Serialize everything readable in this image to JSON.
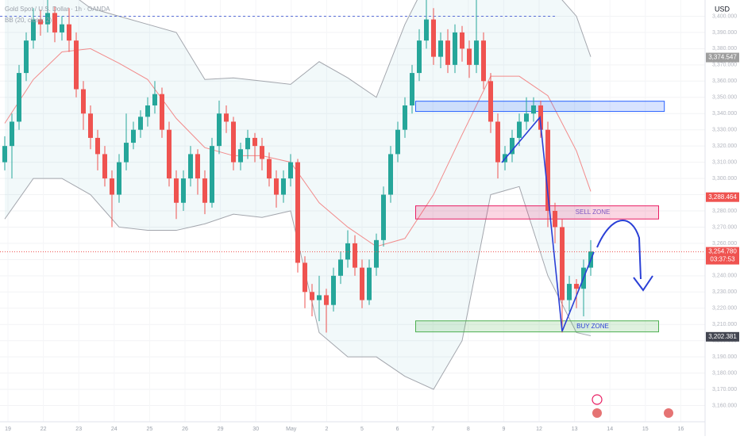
{
  "chart_data": {
    "type": "candlestick",
    "title": "Gold Spot / U.S. Dollar · 1h · OANDA",
    "indicator": "BB (20, close, 2)",
    "currency": "USD",
    "up_color": "#26a69a",
    "down_color": "#ef5350",
    "ylim": [
      3150,
      3410
    ],
    "yticks": [
      {
        "value": 3160,
        "label": "3,160.000"
      },
      {
        "value": 3170,
        "label": "3,170.000"
      },
      {
        "value": 3180,
        "label": "3,180.000"
      },
      {
        "value": 3190,
        "label": "3,190.000"
      },
      {
        "value": 3200,
        "label": "3,200.000"
      },
      {
        "value": 3210,
        "label": "3,210.000"
      },
      {
        "value": 3220,
        "label": "3,220.000"
      },
      {
        "value": 3230,
        "label": "3,230.000"
      },
      {
        "value": 3240,
        "label": "3,240.000"
      },
      {
        "value": 3250,
        "label": "3,250.000"
      },
      {
        "value": 3260,
        "label": "3,260.000"
      },
      {
        "value": 3270,
        "label": "3,270.000"
      },
      {
        "value": 3280,
        "label": "3,280.000"
      },
      {
        "value": 3290,
        "label": "3,290.000"
      },
      {
        "value": 3300,
        "label": "3,300.000"
      },
      {
        "value": 3310,
        "label": "3,310.000"
      },
      {
        "value": 3320,
        "label": "3,320.000"
      },
      {
        "value": 3330,
        "label": "3,330.000"
      },
      {
        "value": 3340,
        "label": "3,340.000"
      },
      {
        "value": 3350,
        "label": "3,350.000"
      },
      {
        "value": 3360,
        "label": "3,360.000"
      },
      {
        "value": 3370,
        "label": "3,370.000"
      },
      {
        "value": 3380,
        "label": "3,380.000"
      },
      {
        "value": 3390,
        "label": "3,390.000"
      },
      {
        "value": 3400,
        "label": "3,400.000"
      }
    ],
    "x_labels": [
      "19",
      "22",
      "23",
      "24",
      "25",
      "26",
      "29",
      "30",
      "May",
      "2",
      "5",
      "6",
      "7",
      "8",
      "9",
      "12",
      "13",
      "14",
      "15",
      "16"
    ],
    "candles": [
      [
        3310,
        3326,
        3305,
        3320
      ],
      [
        3320,
        3340,
        3300,
        3335
      ],
      [
        3335,
        3370,
        3330,
        3365
      ],
      [
        3365,
        3390,
        3360,
        3385
      ],
      [
        3385,
        3405,
        3380,
        3398
      ],
      [
        3398,
        3404,
        3388,
        3395
      ],
      [
        3395,
        3410,
        3390,
        3402
      ],
      [
        3402,
        3406,
        3384,
        3390
      ],
      [
        3390,
        3400,
        3385,
        3395
      ],
      [
        3395,
        3405,
        3378,
        3385
      ],
      [
        3385,
        3390,
        3350,
        3355
      ],
      [
        3355,
        3360,
        3330,
        3340
      ],
      [
        3340,
        3345,
        3318,
        3325
      ],
      [
        3325,
        3330,
        3305,
        3315
      ],
      [
        3315,
        3320,
        3295,
        3300
      ],
      [
        3300,
        3305,
        3270,
        3290
      ],
      [
        3290,
        3315,
        3285,
        3310
      ],
      [
        3310,
        3340,
        3305,
        3322
      ],
      [
        3322,
        3335,
        3318,
        3330
      ],
      [
        3330,
        3342,
        3325,
        3338
      ],
      [
        3338,
        3350,
        3332,
        3345
      ],
      [
        3345,
        3360,
        3340,
        3352
      ],
      [
        3352,
        3356,
        3325,
        3330
      ],
      [
        3330,
        3335,
        3295,
        3300
      ],
      [
        3300,
        3305,
        3275,
        3285
      ],
      [
        3285,
        3305,
        3280,
        3300
      ],
      [
        3300,
        3320,
        3295,
        3315
      ],
      [
        3315,
        3318,
        3290,
        3300
      ],
      [
        3300,
        3305,
        3278,
        3285
      ],
      [
        3285,
        3325,
        3282,
        3320
      ],
      [
        3320,
        3348,
        3315,
        3340
      ],
      [
        3340,
        3345,
        3328,
        3335
      ],
      [
        3335,
        3338,
        3305,
        3310
      ],
      [
        3310,
        3322,
        3305,
        3318
      ],
      [
        3318,
        3330,
        3312,
        3325
      ],
      [
        3325,
        3328,
        3310,
        3320
      ],
      [
        3320,
        3325,
        3305,
        3312
      ],
      [
        3312,
        3316,
        3295,
        3300
      ],
      [
        3300,
        3305,
        3282,
        3290
      ],
      [
        3290,
        3305,
        3285,
        3300
      ],
      [
        3300,
        3315,
        3295,
        3310
      ],
      [
        3310,
        3312,
        3242,
        3248
      ],
      [
        3248,
        3252,
        3220,
        3230
      ],
      [
        3230,
        3235,
        3215,
        3225
      ],
      [
        3225,
        3240,
        3212,
        3228
      ],
      [
        3228,
        3232,
        3205,
        3222
      ],
      [
        3222,
        3245,
        3218,
        3240
      ],
      [
        3240,
        3255,
        3235,
        3250
      ],
      [
        3250,
        3268,
        3245,
        3260
      ],
      [
        3260,
        3265,
        3240,
        3245
      ],
      [
        3245,
        3250,
        3220,
        3225
      ],
      [
        3225,
        3250,
        3222,
        3245
      ],
      [
        3245,
        3266,
        3240,
        3262
      ],
      [
        3262,
        3295,
        3258,
        3290
      ],
      [
        3290,
        3320,
        3285,
        3315
      ],
      [
        3315,
        3335,
        3310,
        3330
      ],
      [
        3330,
        3350,
        3325,
        3345
      ],
      [
        3345,
        3370,
        3340,
        3365
      ],
      [
        3365,
        3392,
        3360,
        3385
      ],
      [
        3385,
        3410,
        3380,
        3398
      ],
      [
        3398,
        3405,
        3370,
        3375
      ],
      [
        3375,
        3390,
        3368,
        3385
      ],
      [
        3385,
        3392,
        3365,
        3370
      ],
      [
        3370,
        3395,
        3365,
        3390
      ],
      [
        3390,
        3394,
        3372,
        3380
      ],
      [
        3380,
        3385,
        3362,
        3370
      ],
      [
        3370,
        3410,
        3365,
        3385
      ],
      [
        3385,
        3390,
        3355,
        3360
      ],
      [
        3360,
        3365,
        3328,
        3335
      ],
      [
        3335,
        3340,
        3300,
        3310
      ],
      [
        3310,
        3320,
        3305,
        3315
      ],
      [
        3315,
        3330,
        3310,
        3325
      ],
      [
        3325,
        3340,
        3320,
        3335
      ],
      [
        3335,
        3350,
        3330,
        3340
      ],
      [
        3340,
        3350,
        3335,
        3345
      ],
      [
        3345,
        3348,
        3325,
        3330
      ],
      [
        3330,
        3335,
        3270,
        3280
      ],
      [
        3280,
        3285,
        3260,
        3270
      ],
      [
        3270,
        3275,
        3205,
        3225
      ],
      [
        3225,
        3240,
        3218,
        3235
      ],
      [
        3235,
        3238,
        3220,
        3232
      ],
      [
        3232,
        3250,
        3215,
        3245
      ],
      [
        3245,
        3262,
        3240,
        3255
      ]
    ],
    "bands": {
      "x": [
        0,
        4,
        8,
        12,
        16,
        20,
        24,
        28,
        32,
        36,
        40,
        44,
        48,
        52,
        56,
        60,
        64,
        68,
        72,
        76,
        80,
        82
      ],
      "upper": [
        3420,
        3425,
        3418,
        3405,
        3400,
        3395,
        3390,
        3361,
        3362,
        3360,
        3358,
        3372,
        3362,
        3350,
        3395,
        3430,
        3440,
        3440,
        3430,
        3420,
        3400,
        3375
      ],
      "middle": [
        3334,
        3361,
        3378,
        3380,
        3371,
        3361,
        3337,
        3319,
        3314,
        3314,
        3310,
        3285,
        3270,
        3258,
        3263,
        3290,
        3327,
        3363,
        3363,
        3351,
        3317,
        3292
      ],
      "lower": [
        3275,
        3300,
        3300,
        3290,
        3270,
        3268,
        3268,
        3272,
        3278,
        3276,
        3280,
        3205,
        3190,
        3190,
        3178,
        3170,
        3200,
        3290,
        3295,
        3240,
        3205,
        3203
      ]
    },
    "zones": [
      {
        "top": 3347.6,
        "bottom": 3341.3,
        "from": 57.5,
        "to": 92.3,
        "color": "#2962ff"
      },
      {
        "label": "SELL ZONE",
        "top": 3283.1,
        "bottom": 3275,
        "from": 57.5,
        "to": 91.5,
        "color": "#e91e63"
      },
      {
        "label": "BUY ZONE",
        "top": 3212.2,
        "bottom": 3205.4,
        "from": 57.5,
        "to": 91.5,
        "color": "#4caf50"
      }
    ],
    "hline": 3400,
    "price_labels": [
      {
        "value": 3374.547,
        "label": "3,374.547",
        "color": "#9e9e9e"
      },
      {
        "value": 3288.464,
        "label": "3,288.464",
        "color": "#ef5350"
      },
      {
        "value": 3254.78,
        "label": "3,254.780",
        "color": "#ef5350",
        "countdown": "03:37:53"
      },
      {
        "value": 3202.381,
        "label": "3,202.381",
        "color": "#434651"
      }
    ]
  }
}
